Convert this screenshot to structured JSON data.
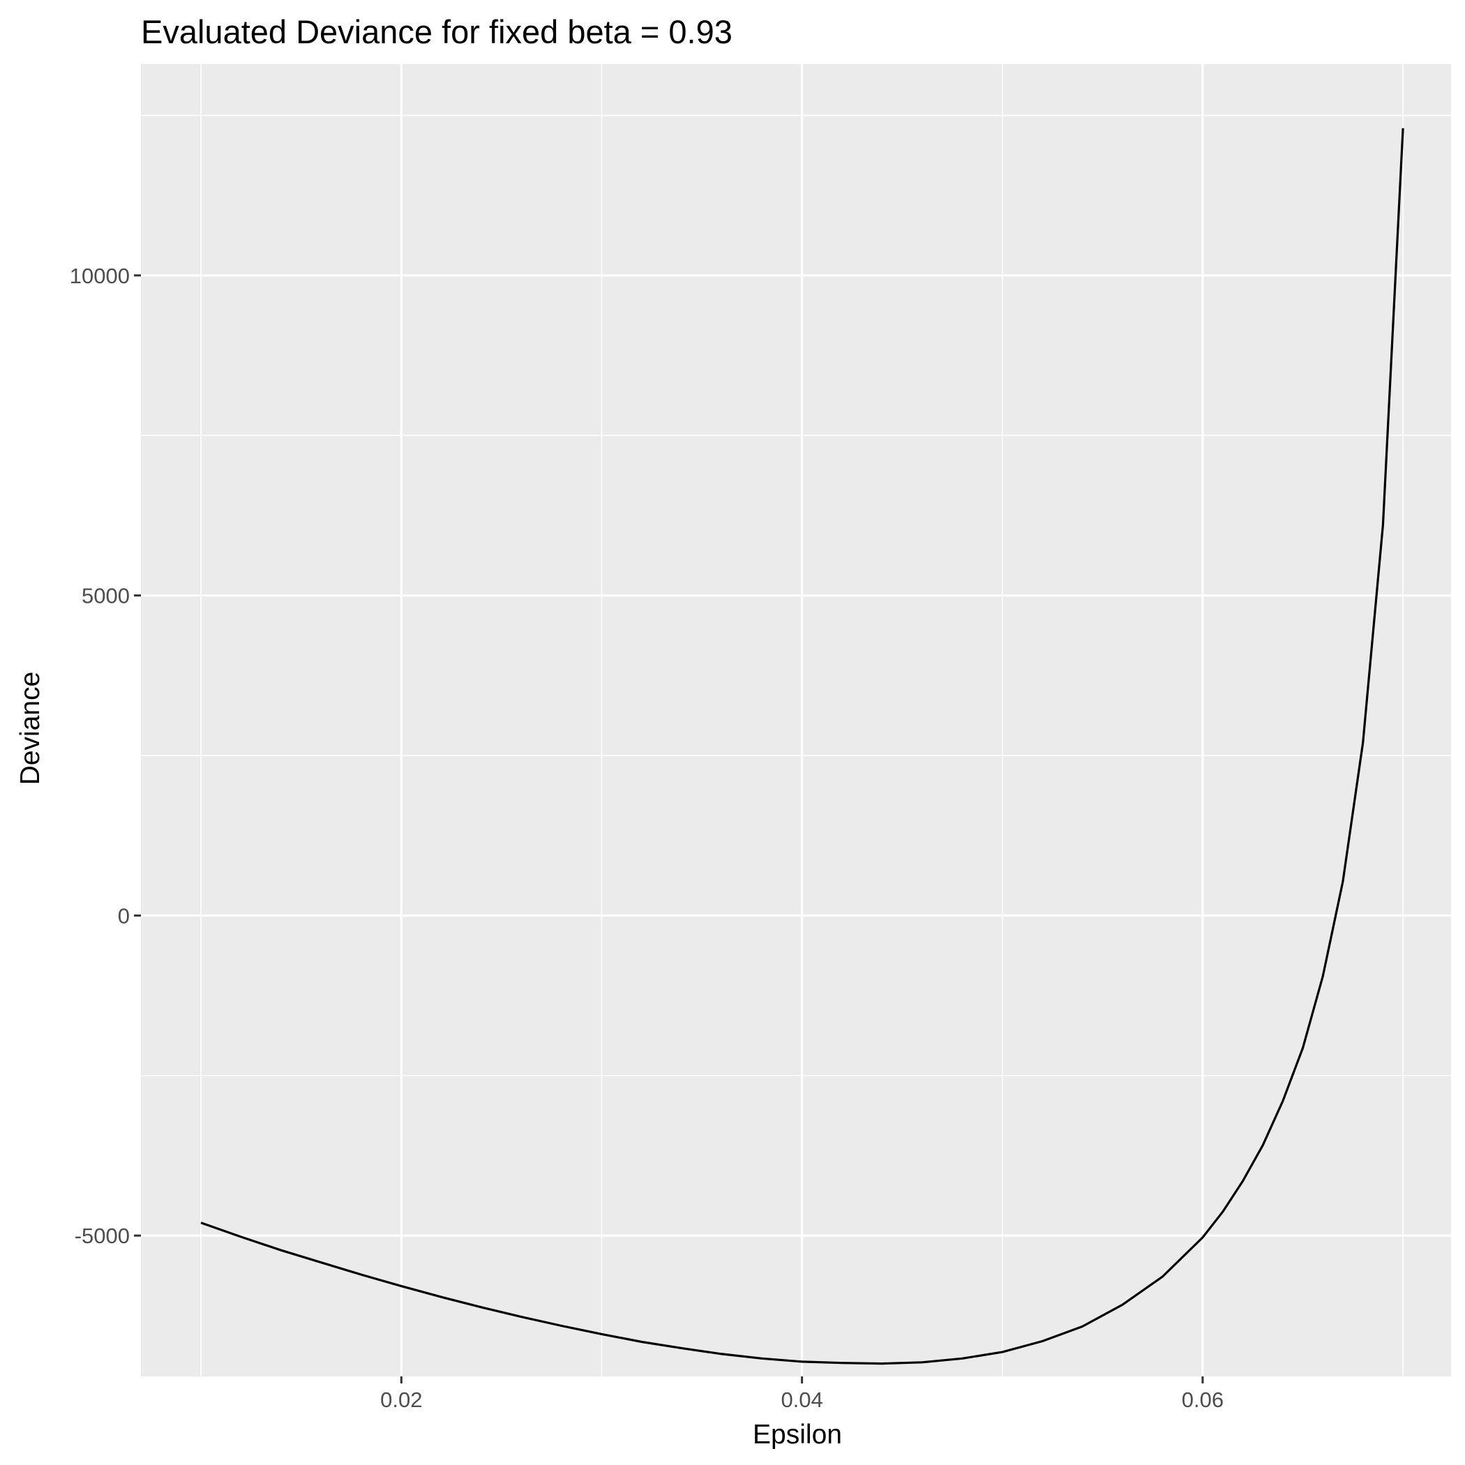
{
  "chart_data": {
    "type": "line",
    "title": "Evaluated Deviance for fixed beta = 0.93",
    "xlabel": "Epsilon",
    "ylabel": "Deviance",
    "xlim": [
      0.007,
      0.0724
    ],
    "ylim": [
      -7200,
      13300
    ],
    "x_ticks": [
      0.02,
      0.04,
      0.06
    ],
    "x_tick_labels": [
      "0.02",
      "0.04",
      "0.06"
    ],
    "x_minor_ticks": [
      0.01,
      0.03,
      0.05,
      0.07
    ],
    "y_ticks": [
      -5000,
      0,
      5000,
      10000
    ],
    "y_tick_labels": [
      "-5000",
      "0",
      "5000",
      "10000"
    ],
    "y_minor_ticks": [
      -2500,
      2500,
      7500,
      12500
    ],
    "grid": true,
    "legend": "none",
    "colors": {
      "panel_background": "#EBEBEB",
      "grid_line": "#FFFFFF",
      "line": "#000000",
      "tick_mark": "#333333",
      "tick_label": "#4D4D4D"
    },
    "series": [
      {
        "x": [
          0.01,
          0.012,
          0.014,
          0.016,
          0.018,
          0.02,
          0.022,
          0.024,
          0.026,
          0.028,
          0.03,
          0.032,
          0.034,
          0.036,
          0.038,
          0.04,
          0.042,
          0.044,
          0.046,
          0.048,
          0.05,
          0.052,
          0.054,
          0.056,
          0.058,
          0.06,
          0.061,
          0.062,
          0.063,
          0.064,
          0.065,
          0.066,
          0.067,
          0.068,
          0.069,
          0.07
        ],
        "values": [
          -4800,
          -5020,
          -5230,
          -5420,
          -5610,
          -5790,
          -5960,
          -6120,
          -6270,
          -6410,
          -6540,
          -6660,
          -6760,
          -6850,
          -6920,
          -6970,
          -6990,
          -7000,
          -6980,
          -6920,
          -6820,
          -6650,
          -6420,
          -6080,
          -5640,
          -5030,
          -4630,
          -4150,
          -3590,
          -2900,
          -2070,
          -950,
          530,
          2700,
          6100,
          12300
        ]
      }
    ]
  }
}
